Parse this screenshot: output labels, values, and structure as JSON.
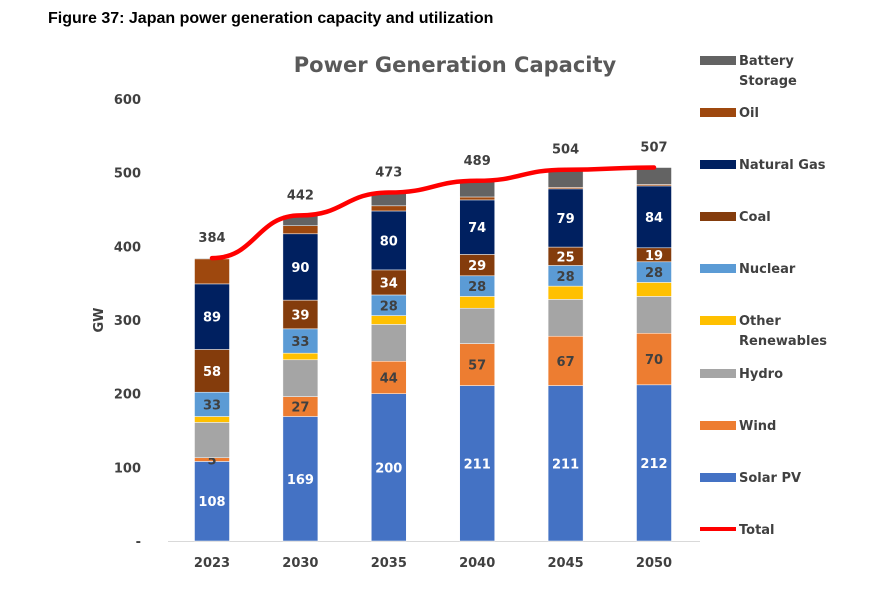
{
  "figure_title": "Figure 37: Japan power generation capacity and utilization",
  "chart_data": {
    "type": "bar",
    "stacked": true,
    "title": "Power Generation Capacity",
    "xlabel": "",
    "ylabel": "GW",
    "ylim": [
      0,
      600
    ],
    "yticks": [
      0,
      100,
      200,
      300,
      400,
      500,
      600
    ],
    "ytick_labels": [
      "-",
      "100",
      "200",
      "300",
      "400",
      "500",
      "600"
    ],
    "grid": false,
    "legend_position": "right",
    "categories": [
      "2023",
      "2030",
      "2035",
      "2040",
      "2045",
      "2050"
    ],
    "series": [
      {
        "name": "Solar PV",
        "color": "#4472C4",
        "values": [
          108,
          169,
          200,
          211,
          211,
          212
        ],
        "show_labels": true,
        "label_color": "#ffffff"
      },
      {
        "name": "Wind",
        "color": "#ED7D31",
        "values": [
          5,
          27,
          44,
          57,
          67,
          70
        ],
        "show_labels": true,
        "label_color": "#404040"
      },
      {
        "name": "Hydro",
        "color": "#A5A5A5",
        "values": [
          48,
          50,
          50,
          48,
          50,
          50
        ],
        "show_labels": false
      },
      {
        "name": "Other Renewables",
        "color": "#FFC000",
        "values": [
          8,
          9,
          12,
          16,
          18,
          19
        ],
        "show_labels": false
      },
      {
        "name": "Nuclear",
        "color": "#5B9BD5",
        "values": [
          33,
          33,
          28,
          28,
          28,
          28
        ],
        "show_labels": true,
        "label_color": "#404040"
      },
      {
        "name": "Coal",
        "color": "#843C0C",
        "values": [
          58,
          39,
          34,
          29,
          25,
          19
        ],
        "show_labels": true,
        "label_color": "#ffffff"
      },
      {
        "name": "Natural Gas",
        "color": "#002060",
        "values": [
          89,
          90,
          80,
          74,
          79,
          84
        ],
        "show_labels": true,
        "label_color": "#ffffff"
      },
      {
        "name": "Oil",
        "color": "#9E480E",
        "values": [
          34,
          11,
          7,
          4,
          2,
          2
        ],
        "show_labels": false
      },
      {
        "name": "Battery Storage",
        "color": "#636363",
        "values": [
          1,
          14,
          18,
          22,
          24,
          23
        ],
        "show_labels": false
      }
    ],
    "total": {
      "name": "Total",
      "color": "#FF0000",
      "type": "line",
      "values": [
        384,
        442,
        473,
        489,
        504,
        507
      ]
    },
    "legend_order": [
      "Battery Storage",
      "Oil",
      "Natural Gas",
      "Coal",
      "Nuclear",
      "Other Renewables",
      "Hydro",
      "Wind",
      "Solar PV",
      "Total"
    ]
  }
}
